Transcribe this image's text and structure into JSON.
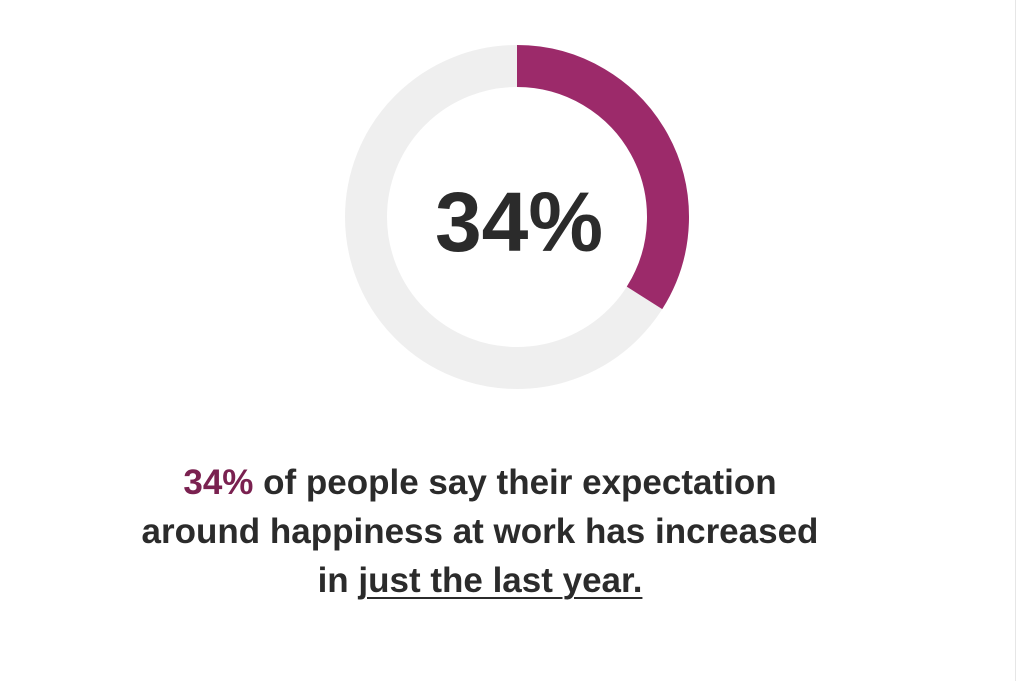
{
  "chart_data": {
    "type": "donut",
    "values": [
      34
    ],
    "value_labels": [
      "34%"
    ],
    "color": "#9c2a6a",
    "track_color": "#efefef",
    "caption": {
      "highlight": "34%",
      "highlight_color": "#7a2150",
      "text": "of people say their expectation around happiness at work has increased in",
      "underlined": "just the last year."
    }
  }
}
